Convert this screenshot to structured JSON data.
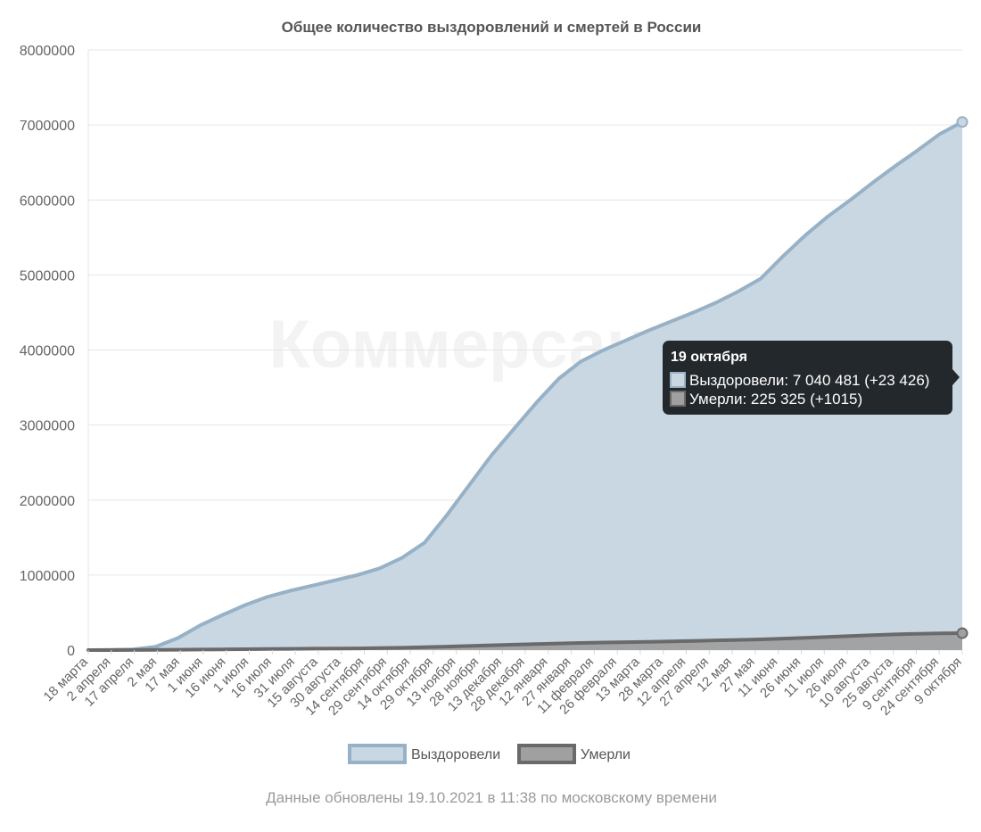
{
  "chart_data": {
    "type": "area",
    "title": "Общее количество выздоровлений и смертей в России",
    "ylim": [
      0,
      8000000
    ],
    "yticks": [
      "0",
      "1000000",
      "2000000",
      "3000000",
      "4000000",
      "5000000",
      "6000000",
      "7000000",
      "8000000"
    ],
    "x_tick_labels": [
      "18 марта",
      "2 апреля",
      "17 апреля",
      "2 мая",
      "17 мая",
      "1 июня",
      "16 июня",
      "1 июля",
      "16 июля",
      "31 июля",
      "15 августа",
      "30 августа",
      "14 сентября",
      "29 сентября",
      "14 октября",
      "29 октября",
      "13 ноября",
      "28 ноября",
      "13 декабря",
      "28 декабря",
      "12 января",
      "27 января",
      "11 февраля",
      "26 февраля",
      "13 марта",
      "28 марта",
      "12 апреля",
      "27 апреля",
      "12 мая",
      "27 мая",
      "11 июня",
      "26 июня",
      "11 июля",
      "26 июля",
      "10 августа",
      "25 августа",
      "9 сентября",
      "24 сентября",
      "9 октября"
    ],
    "grid": true,
    "legend_position": "bottom",
    "series": [
      {
        "name": "Выздоровели",
        "color": "#97b1c6",
        "fill": "#c9d7e2",
        "values": [
          0,
          3000,
          10000,
          45000,
          160000,
          330000,
          470000,
          600000,
          710000,
          790000,
          860000,
          930000,
          1000000,
          1090000,
          1230000,
          1430000,
          1800000,
          2200000,
          2600000,
          2950000,
          3300000,
          3620000,
          3850000,
          4000000,
          4130000,
          4260000,
          4380000,
          4500000,
          4630000,
          4780000,
          4950000,
          5250000,
          5530000,
          5780000,
          6000000,
          6230000,
          6450000,
          6660000,
          6880000,
          7040481
        ]
      },
      {
        "name": "Умерли",
        "color": "#6a6a6a",
        "fill": "#a0a0a0",
        "values": [
          0,
          500,
          1500,
          3000,
          5000,
          7000,
          9000,
          12000,
          14500,
          16500,
          18500,
          20500,
          23000,
          26000,
          31000,
          38000,
          46000,
          55000,
          64000,
          72000,
          80000,
          88000,
          95000,
          101000,
          106000,
          111000,
          117000,
          123000,
          129000,
          136000,
          143000,
          153000,
          163000,
          175000,
          187000,
          199000,
          209000,
          218000,
          222000,
          225325
        ]
      }
    ]
  },
  "watermark": "Коммерсантъ",
  "tooltip": {
    "title": "19 октября",
    "lines": [
      {
        "label": "Выздоровели: 7 040 481 (+23 426)",
        "color": "#c9d7e2",
        "border": "#97b1c6"
      },
      {
        "label": "Умерли: 225 325 (+1015)",
        "color": "#a0a0a0",
        "border": "#6a6a6a"
      }
    ]
  },
  "legend": [
    {
      "label": "Выздоровели",
      "fill": "#c9d7e2",
      "border": "#97b1c6"
    },
    {
      "label": "Умерли",
      "fill": "#a0a0a0",
      "border": "#6a6a6a"
    }
  ],
  "footer": "Данные обновлены 19.10.2021 в 11:38 по московскому времени"
}
